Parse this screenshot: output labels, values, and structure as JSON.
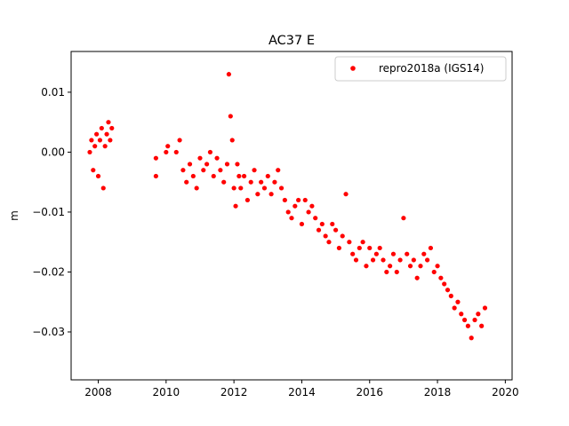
{
  "chart_data": {
    "type": "scatter",
    "title": "AC37 E",
    "xlabel": "",
    "ylabel": "m",
    "xlim": [
      2007.2,
      2020.2
    ],
    "ylim": [
      -0.038,
      0.0168
    ],
    "xticks": [
      2008,
      2010,
      2012,
      2014,
      2016,
      2018,
      2020
    ],
    "xtick_labels": [
      "2008",
      "2010",
      "2012",
      "2014",
      "2016",
      "2018",
      "2020"
    ],
    "yticks": [
      0.01,
      0.0,
      -0.01,
      -0.02,
      -0.03
    ],
    "ytick_labels": [
      "0.01",
      "0.00",
      "−0.01",
      "−0.02",
      "−0.03"
    ],
    "grid": false,
    "legend_position": "upper right",
    "series": [
      {
        "name": "repro2018a (IGS14)",
        "color": "#ff0000",
        "marker": "circle",
        "x": [
          2007.75,
          2007.8,
          2007.85,
          2007.9,
          2007.95,
          2008.0,
          2008.05,
          2008.1,
          2008.15,
          2008.2,
          2008.25,
          2008.3,
          2008.35,
          2008.4,
          2009.7,
          2009.7,
          2010.0,
          2010.05,
          2010.3,
          2010.4,
          2010.5,
          2010.6,
          2010.7,
          2010.8,
          2010.9,
          2011.0,
          2011.1,
          2011.2,
          2011.3,
          2011.4,
          2011.5,
          2011.6,
          2011.7,
          2011.8,
          2011.85,
          2011.9,
          2011.95,
          2012.0,
          2012.05,
          2012.1,
          2012.15,
          2012.2,
          2012.3,
          2012.4,
          2012.5,
          2012.6,
          2012.7,
          2012.8,
          2012.9,
          2013.0,
          2013.1,
          2013.2,
          2013.3,
          2013.4,
          2013.5,
          2013.6,
          2013.7,
          2013.8,
          2013.9,
          2014.0,
          2014.1,
          2014.2,
          2014.3,
          2014.4,
          2014.5,
          2014.6,
          2014.7,
          2014.8,
          2014.9,
          2015.0,
          2015.1,
          2015.2,
          2015.3,
          2015.4,
          2015.5,
          2015.6,
          2015.7,
          2015.8,
          2015.9,
          2016.0,
          2016.1,
          2016.2,
          2016.3,
          2016.4,
          2016.5,
          2016.6,
          2016.7,
          2016.8,
          2016.9,
          2017.0,
          2017.1,
          2017.2,
          2017.3,
          2017.4,
          2017.5,
          2017.6,
          2017.7,
          2017.8,
          2017.9,
          2018.0,
          2018.1,
          2018.2,
          2018.3,
          2018.4,
          2018.5,
          2018.6,
          2018.7,
          2018.8,
          2018.9,
          2019.0,
          2019.1,
          2019.2,
          2019.3,
          2019.4
        ],
        "y": [
          0.0,
          0.002,
          -0.003,
          0.001,
          0.003,
          -0.004,
          0.002,
          0.004,
          -0.006,
          0.001,
          0.003,
          0.005,
          0.002,
          0.004,
          -0.001,
          -0.004,
          0.0,
          0.001,
          0.0,
          0.002,
          -0.003,
          -0.005,
          -0.002,
          -0.004,
          -0.006,
          -0.001,
          -0.003,
          -0.002,
          0.0,
          -0.004,
          -0.001,
          -0.003,
          -0.005,
          -0.002,
          0.013,
          0.006,
          0.002,
          -0.006,
          -0.009,
          -0.002,
          -0.004,
          -0.006,
          -0.004,
          -0.008,
          -0.005,
          -0.003,
          -0.007,
          -0.005,
          -0.006,
          -0.004,
          -0.007,
          -0.005,
          -0.003,
          -0.006,
          -0.008,
          -0.01,
          -0.011,
          -0.009,
          -0.008,
          -0.012,
          -0.008,
          -0.01,
          -0.009,
          -0.011,
          -0.013,
          -0.012,
          -0.014,
          -0.015,
          -0.012,
          -0.013,
          -0.016,
          -0.014,
          -0.007,
          -0.015,
          -0.017,
          -0.018,
          -0.016,
          -0.015,
          -0.019,
          -0.016,
          -0.018,
          -0.017,
          -0.016,
          -0.018,
          -0.02,
          -0.019,
          -0.017,
          -0.02,
          -0.018,
          -0.011,
          -0.017,
          -0.019,
          -0.018,
          -0.021,
          -0.019,
          -0.017,
          -0.018,
          -0.016,
          -0.02,
          -0.019,
          -0.021,
          -0.022,
          -0.023,
          -0.024,
          -0.026,
          -0.025,
          -0.027,
          -0.028,
          -0.029,
          -0.031,
          -0.028,
          -0.027,
          -0.029,
          -0.026
        ]
      }
    ]
  }
}
